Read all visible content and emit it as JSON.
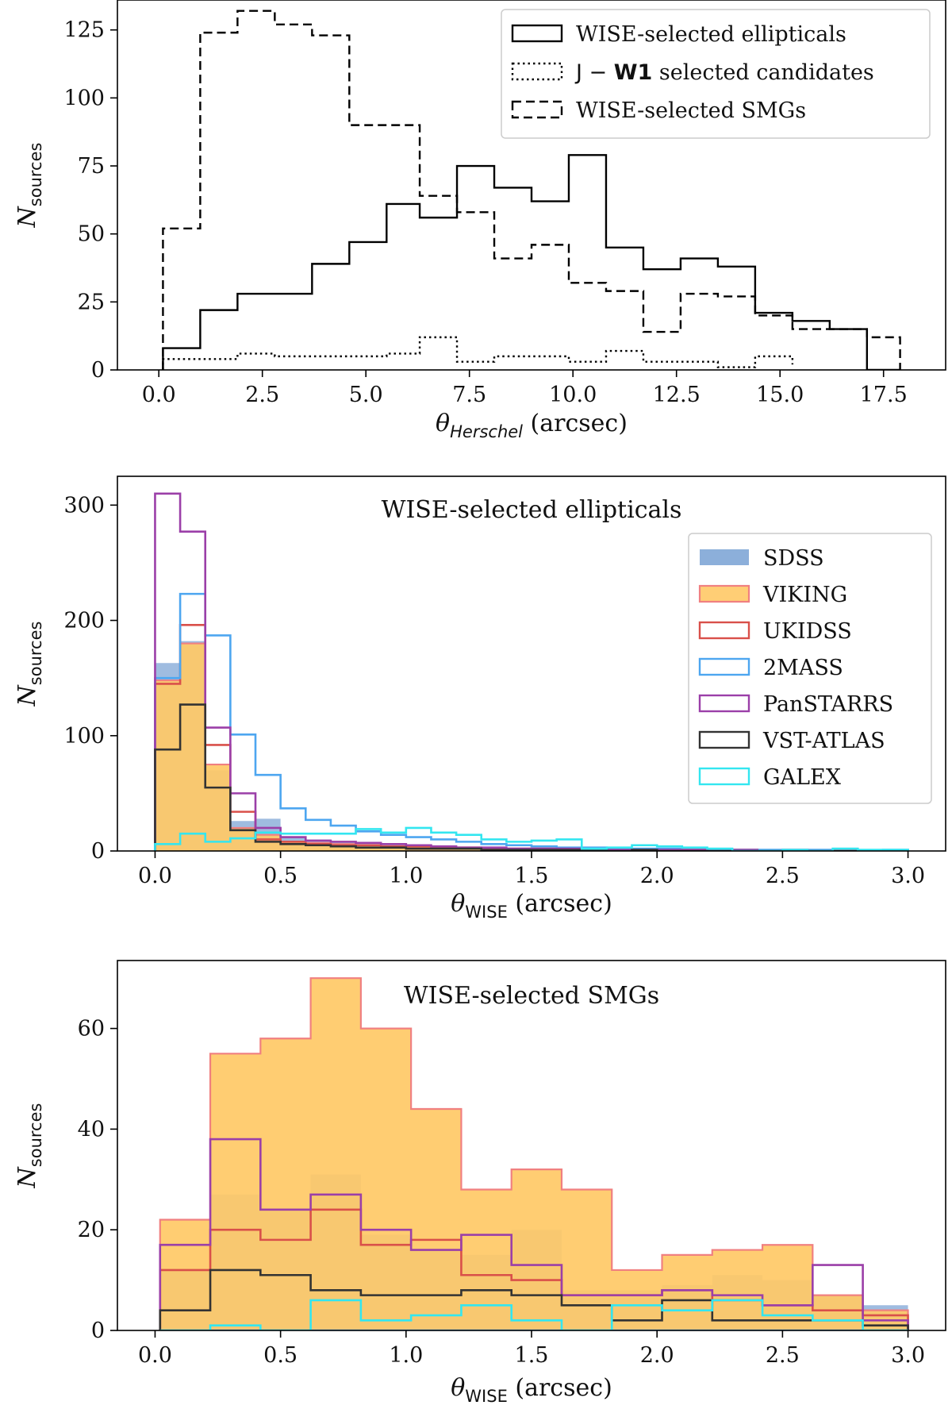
{
  "chart_data": [
    {
      "type": "histogram",
      "title": "",
      "xlabel": {
        "symbol": "θ",
        "sub": "Herschel",
        "unit": "(arcsec)"
      },
      "ylabel": {
        "symbol": "N",
        "sub": "sources"
      },
      "xlim": [
        -1.0,
        19.0
      ],
      "ylim": [
        0,
        136
      ],
      "xticks": [
        0,
        2.5,
        5,
        7.5,
        10,
        12.5,
        15,
        17.5
      ],
      "xtick_labels": [
        "0.0",
        "2.5",
        "5.0",
        "7.5",
        "10.0",
        "12.5",
        "15.0",
        "17.5"
      ],
      "yticks": [
        0,
        25,
        50,
        75,
        100,
        125
      ],
      "ytick_labels": [
        "0",
        "25",
        "50",
        "75",
        "100",
        "125"
      ],
      "legend_position": "top-right",
      "series": [
        {
          "name": "WISE-selected ellipticals",
          "color": "#000000",
          "style": "solid",
          "fill": "none",
          "edges": [
            0.1,
            1.0,
            1.9,
            2.8,
            3.7,
            4.6,
            5.5,
            6.3,
            7.2,
            8.1,
            9.0,
            9.9,
            10.8,
            11.7,
            12.6,
            13.5,
            14.4,
            15.3,
            16.2,
            17.1,
            17.9
          ],
          "values": [
            8,
            22,
            28,
            28,
            39,
            47,
            61,
            56,
            75,
            67,
            62,
            79,
            45,
            37,
            41,
            38,
            21,
            18,
            15,
            0
          ]
        },
        {
          "name": "J − W1 selected candidates",
          "name_prefix": "J − ",
          "name_bold": "W1",
          "name_suffix": " selected candidates",
          "color": "#000000",
          "style": "dotted",
          "fill": "none",
          "edges": [
            0.1,
            1.9,
            2.8,
            3.7,
            4.6,
            5.5,
            6.3,
            7.2,
            8.1,
            9.0,
            9.9,
            10.8,
            11.7,
            12.6,
            13.5,
            14.4,
            15.3
          ],
          "values": [
            4,
            6,
            5,
            5,
            5,
            6,
            12,
            3,
            5,
            5,
            3,
            7,
            3,
            3,
            1,
            5,
            2
          ]
        },
        {
          "name": "WISE-selected SMGs",
          "color": "#000000",
          "style": "dashed",
          "fill": "none",
          "edges": [
            0.1,
            1.0,
            1.9,
            2.8,
            3.7,
            4.6,
            5.5,
            6.3,
            7.2,
            8.1,
            9.0,
            9.9,
            10.8,
            11.7,
            12.6,
            13.5,
            14.4,
            15.3,
            16.2,
            17.1,
            17.9
          ],
          "values": [
            52,
            124,
            132,
            127,
            123,
            90,
            90,
            64,
            58,
            41,
            46,
            32,
            29,
            14,
            28,
            27,
            20,
            15,
            15,
            12
          ]
        }
      ]
    },
    {
      "type": "histogram",
      "title": "WISE-selected ellipticals",
      "xlabel": {
        "symbol": "θ",
        "sub": "WISE",
        "unit": "(arcsec)"
      },
      "ylabel": {
        "symbol": "N",
        "sub": "sources"
      },
      "xlim": [
        -0.15,
        3.15
      ],
      "ylim": [
        0,
        325
      ],
      "xticks": [
        0,
        0.5,
        1.0,
        1.5,
        2.0,
        2.5,
        3.0
      ],
      "xtick_labels": [
        "0.0",
        "0.5",
        "1.0",
        "1.5",
        "2.0",
        "2.5",
        "3.0"
      ],
      "yticks": [
        0,
        100,
        200,
        300
      ],
      "ytick_labels": [
        "0",
        "100",
        "200",
        "300"
      ],
      "legend_position": "right",
      "bin_edges": [
        0,
        0.1,
        0.2,
        0.3,
        0.4,
        0.5,
        0.6,
        0.7,
        0.8,
        0.9,
        1.0,
        1.1,
        1.2,
        1.3,
        1.4,
        1.5,
        1.6,
        1.7,
        1.8,
        1.9,
        2.0,
        2.1,
        2.2,
        2.3,
        2.4,
        2.5,
        2.6,
        2.7,
        2.8,
        2.9,
        3.0
      ],
      "series": [
        {
          "name": "SDSS",
          "color": "#7fa6d6",
          "style": "filled",
          "values": [
            163,
            182,
            70,
            26,
            28,
            12,
            10,
            8,
            6,
            5,
            4,
            3,
            3,
            2,
            2,
            2,
            1,
            1,
            1,
            1,
            1,
            1,
            0,
            1,
            0,
            1,
            0,
            1,
            0,
            0
          ]
        },
        {
          "name": "VIKING",
          "color": "#ffc966",
          "edge": "#f08080",
          "style": "filled",
          "values": [
            148,
            180,
            75,
            20,
            14,
            8,
            7,
            6,
            5,
            4,
            4,
            3,
            3,
            2,
            2,
            2,
            1,
            1,
            1,
            1,
            1,
            1,
            0,
            1,
            0,
            1,
            0,
            0,
            0,
            0
          ]
        },
        {
          "name": "UKIDSS",
          "color": "#d9504a",
          "style": "step",
          "values": [
            145,
            196,
            92,
            34,
            10,
            8,
            6,
            5,
            5,
            4,
            4,
            3,
            3,
            2,
            2,
            2,
            1,
            1,
            1,
            1,
            1,
            1,
            0,
            1,
            0,
            1,
            0,
            0,
            0,
            0
          ]
        },
        {
          "name": "2MASS",
          "color": "#4da6f0",
          "style": "step",
          "values": [
            150,
            223,
            187,
            101,
            66,
            37,
            27,
            22,
            17,
            14,
            12,
            10,
            8,
            6,
            5,
            4,
            3,
            3,
            2,
            2,
            2,
            1,
            1,
            1,
            1,
            1,
            1,
            0,
            0,
            1
          ]
        },
        {
          "name": "PanSTARRS",
          "color": "#9b3fa8",
          "style": "step",
          "values": [
            310,
            277,
            107,
            50,
            20,
            12,
            9,
            8,
            7,
            6,
            5,
            4,
            3,
            3,
            2,
            2,
            2,
            1,
            1,
            1,
            1,
            1,
            0,
            1,
            0,
            1,
            0,
            0,
            0,
            0
          ]
        },
        {
          "name": "VST-ATLAS",
          "color": "#333333",
          "style": "step",
          "values": [
            88,
            127,
            55,
            18,
            8,
            6,
            5,
            4,
            3,
            3,
            2,
            2,
            2,
            1,
            1,
            1,
            1,
            1,
            0,
            1,
            0,
            0,
            0,
            0,
            0,
            0,
            0,
            0,
            0,
            0
          ]
        },
        {
          "name": "GALEX",
          "color": "#33e6f0",
          "style": "step",
          "values": [
            6,
            15,
            8,
            11,
            16,
            15,
            15,
            15,
            19,
            16,
            20,
            16,
            14,
            10,
            8,
            9,
            10,
            2,
            3,
            5,
            4,
            3,
            2,
            0,
            0,
            1,
            0,
            2,
            1,
            1
          ]
        }
      ]
    },
    {
      "type": "histogram",
      "title": "WISE-selected SMGs",
      "xlabel": {
        "symbol": "θ",
        "sub": "WISE",
        "unit": "(arcsec)"
      },
      "ylabel": {
        "symbol": "N",
        "sub": "sources"
      },
      "xlim": [
        -0.15,
        3.15
      ],
      "ylim": [
        0,
        73.5
      ],
      "xticks": [
        0,
        0.5,
        1.0,
        1.5,
        2.0,
        2.5,
        3.0
      ],
      "xtick_labels": [
        "0.0",
        "0.5",
        "1.0",
        "1.5",
        "2.0",
        "2.5",
        "3.0"
      ],
      "yticks": [
        0,
        20,
        40,
        60
      ],
      "ytick_labels": [
        "0",
        "20",
        "40",
        "60"
      ],
      "bin_edges": [
        0.02,
        0.22,
        0.42,
        0.62,
        0.82,
        1.02,
        1.22,
        1.42,
        1.62,
        1.82,
        2.02,
        2.22,
        2.42,
        2.62,
        2.82,
        3.0
      ],
      "series": [
        {
          "name": "SDSS",
          "color": "#7fa6d6",
          "style": "filled",
          "values": [
            12,
            27,
            24,
            31,
            19,
            16,
            15,
            20,
            8,
            8,
            9,
            11,
            10,
            7,
            5
          ]
        },
        {
          "name": "VIKING",
          "color": "#ffc966",
          "edge": "#f08080",
          "style": "filled",
          "values": [
            22,
            55,
            58,
            70,
            60,
            44,
            28,
            32,
            28,
            12,
            15,
            16,
            17,
            7,
            4
          ]
        },
        {
          "name": "UKIDSS",
          "color": "#d9504a",
          "style": "step",
          "values": [
            12,
            20,
            18,
            24,
            17,
            18,
            11,
            10,
            7,
            7,
            8,
            6,
            5,
            4,
            3
          ]
        },
        {
          "name": "2MASS",
          "color": "#4da6f0",
          "style": "step",
          "values": [
            0,
            0,
            0,
            0,
            0,
            0,
            0,
            0,
            0,
            0,
            0,
            0,
            0,
            0,
            0
          ]
        },
        {
          "name": "PanSTARRS",
          "color": "#9b3fa8",
          "style": "step",
          "values": [
            17,
            38,
            24,
            27,
            20,
            16,
            19,
            13,
            7,
            7,
            8,
            7,
            5,
            13,
            2
          ]
        },
        {
          "name": "VST-ATLAS",
          "color": "#333333",
          "style": "step",
          "values": [
            4,
            12,
            11,
            8,
            7,
            7,
            8,
            7,
            5,
            2,
            6,
            2,
            2,
            2,
            1
          ]
        },
        {
          "name": "GALEX",
          "color": "#33e6f0",
          "style": "step",
          "values": [
            0,
            1,
            0,
            6,
            2,
            3,
            5,
            2,
            0,
            5,
            4,
            6,
            3,
            2,
            0
          ]
        }
      ]
    }
  ]
}
